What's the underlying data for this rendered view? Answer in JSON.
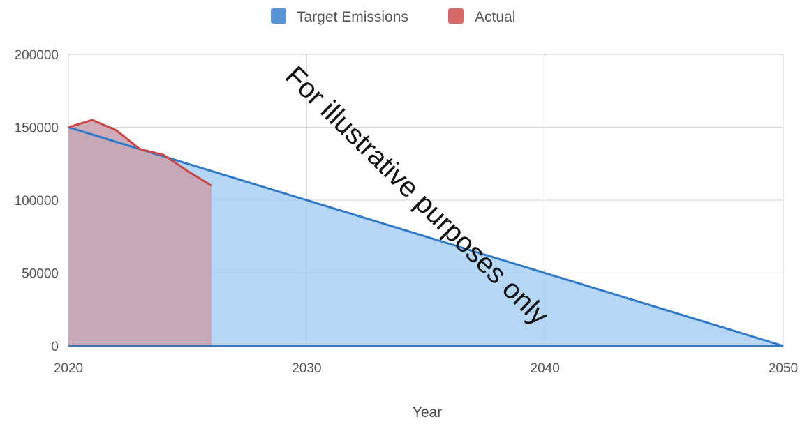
{
  "chart_data": {
    "type": "area",
    "title": "",
    "xlabel": "Year",
    "ylabel": "",
    "xlim": [
      2020,
      2050
    ],
    "ylim": [
      0,
      200000
    ],
    "x_ticks": [
      "2020",
      "2030",
      "2040",
      "2050"
    ],
    "y_ticks": [
      "0",
      "50000",
      "100000",
      "150000",
      "200000"
    ],
    "grid": true,
    "legend_position": "top-center",
    "series": [
      {
        "name": "Target Emissions",
        "color": "#2f79c9",
        "fill": "#a9cff3",
        "points": [
          [
            2020,
            150000
          ],
          [
            2050,
            0
          ]
        ]
      },
      {
        "name": "Actual",
        "color": "#cc4444",
        "fill": "#c9a3b2",
        "points": [
          [
            2020,
            150000
          ],
          [
            2021,
            155000
          ],
          [
            2022,
            148000
          ],
          [
            2023,
            135000
          ],
          [
            2024,
            131000
          ],
          [
            2025,
            120000
          ],
          [
            2026,
            110000
          ]
        ]
      }
    ],
    "annotations": [
      "For illustrative purposes only"
    ]
  }
}
